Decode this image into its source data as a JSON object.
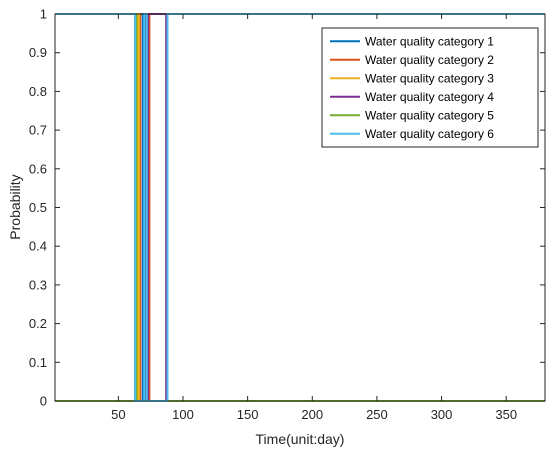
{
  "chart_data": {
    "type": "line",
    "title": "",
    "xlabel": "Time(unit:day)",
    "ylabel": "Probability",
    "xlim": [
      1,
      380
    ],
    "ylim": [
      0,
      1
    ],
    "xticks": [
      50,
      100,
      150,
      200,
      250,
      300,
      350
    ],
    "yticks": [
      0,
      0.1,
      0.2,
      0.3,
      0.4,
      0.5,
      0.6,
      0.7,
      0.8,
      0.9,
      1
    ],
    "grid": false,
    "legend_position": "top-right",
    "series": [
      {
        "name": "Water quality category 1",
        "color": "#0072BD",
        "x": [
          1,
          63,
          63,
          65,
          65,
          67,
          67,
          69,
          69,
          71,
          71,
          380
        ],
        "y": [
          0,
          0,
          1,
          1,
          0,
          0,
          1,
          1,
          0,
          0,
          1,
          1
        ]
      },
      {
        "name": "Water quality category 2",
        "color": "#D95319",
        "x": [
          1,
          65,
          65,
          67,
          67,
          72,
          72,
          74,
          74,
          380
        ],
        "y": [
          0,
          0,
          1,
          1,
          0,
          0,
          1,
          1,
          0,
          0
        ]
      },
      {
        "name": "Water quality category 3",
        "color": "#EDB120",
        "x": [
          1,
          65,
          65,
          66,
          66,
          380
        ],
        "y": [
          0,
          0,
          1,
          1,
          0,
          0
        ]
      },
      {
        "name": "Water quality category 4",
        "color": "#7E2F8E",
        "x": [
          1,
          73,
          73,
          87,
          87,
          380
        ],
        "y": [
          0,
          0,
          1,
          1,
          0,
          0
        ]
      },
      {
        "name": "Water quality category 5",
        "color": "#77AC30",
        "x": [
          1,
          63,
          63,
          64,
          64,
          380
        ],
        "y": [
          0,
          0,
          1,
          1,
          0,
          0
        ]
      },
      {
        "name": "Water quality category 6",
        "color": "#4DBEEE",
        "x": [
          1,
          63,
          63,
          70,
          70,
          72,
          72,
          88,
          88,
          380
        ],
        "y": [
          1,
          1,
          0,
          0,
          1,
          1,
          0,
          0,
          1,
          1
        ]
      }
    ]
  }
}
